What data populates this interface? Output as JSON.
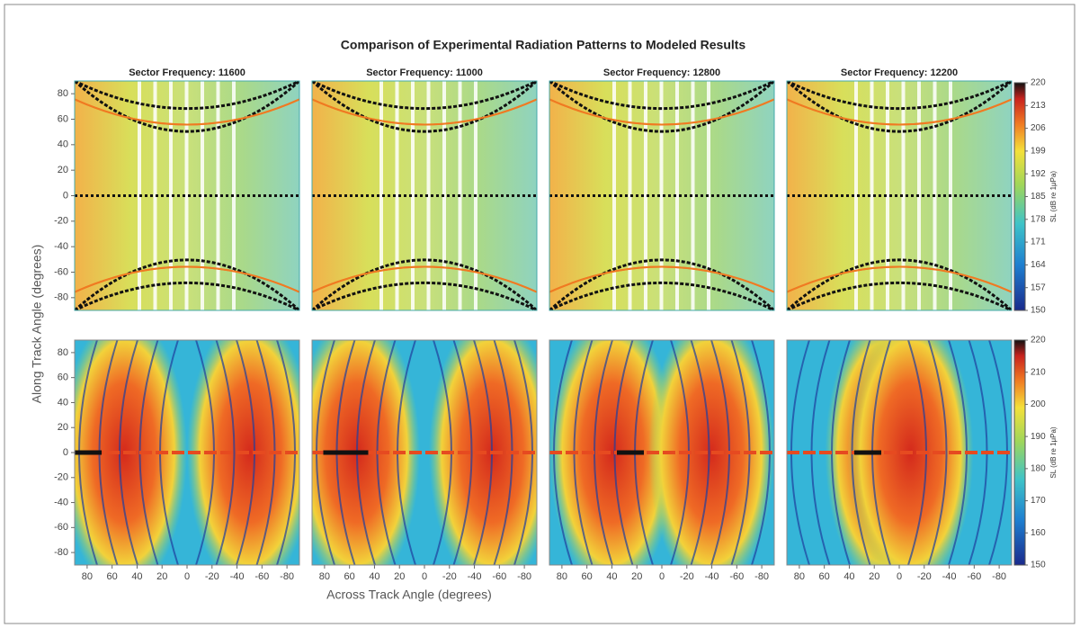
{
  "figure": {
    "title": "Comparison of Experimental Radiation Patterns to Modeled Results",
    "xlabel": "Across Track Angle (degrees)",
    "ylabel": "Along Track Angle (degrees)"
  },
  "chart_data": [
    {
      "type": "heatmap",
      "title": "Sector Frequency: 11600",
      "xlim": [
        90,
        -90
      ],
      "ylim": [
        -90,
        90
      ],
      "yticks": [
        -80,
        -60,
        -40,
        -20,
        0,
        20,
        40,
        60,
        80
      ]
    },
    {
      "type": "heatmap",
      "title": "Sector Frequency: 11000",
      "xlim": [
        90,
        -90
      ],
      "ylim": [
        -90,
        90
      ]
    },
    {
      "type": "heatmap",
      "title": "Sector Frequency: 12800",
      "xlim": [
        90,
        -90
      ],
      "ylim": [
        -90,
        90
      ]
    },
    {
      "type": "heatmap",
      "title": "Sector Frequency: 12200",
      "xlim": [
        90,
        -90
      ],
      "ylim": [
        -90,
        90
      ],
      "colorbar": {
        "label": "SL (dB re 1μPa)",
        "lim": [
          150,
          220
        ],
        "ticks": [
          150,
          157,
          164,
          171,
          178,
          185,
          192,
          199,
          206,
          213,
          220
        ]
      }
    },
    {
      "type": "heatmap",
      "xlim": [
        90,
        -90
      ],
      "ylim": [
        -90,
        90
      ],
      "yticks": [
        -80,
        -60,
        -40,
        -20,
        0,
        20,
        40,
        60,
        80
      ],
      "xticks": [
        80,
        60,
        40,
        20,
        0,
        -20,
        -40,
        -60,
        -80
      ]
    },
    {
      "type": "heatmap",
      "xlim": [
        90,
        -90
      ],
      "ylim": [
        -90,
        90
      ],
      "xticks": [
        80,
        60,
        40,
        20,
        0,
        -20,
        -40,
        -60,
        -80
      ]
    },
    {
      "type": "heatmap",
      "xlim": [
        90,
        -90
      ],
      "ylim": [
        -90,
        90
      ],
      "xticks": [
        80,
        60,
        40,
        20,
        0,
        -20,
        -40,
        -60,
        -80
      ]
    },
    {
      "type": "heatmap",
      "xlim": [
        90,
        -90
      ],
      "ylim": [
        -90,
        90
      ],
      "xticks": [
        80,
        60,
        40,
        20,
        0,
        -20,
        -40,
        -60,
        -80
      ],
      "colorbar": {
        "label": "SL (dB re 1μPa)",
        "lim": [
          150,
          220
        ],
        "ticks": [
          150,
          160,
          170,
          180,
          190,
          200,
          210,
          220
        ]
      }
    }
  ]
}
